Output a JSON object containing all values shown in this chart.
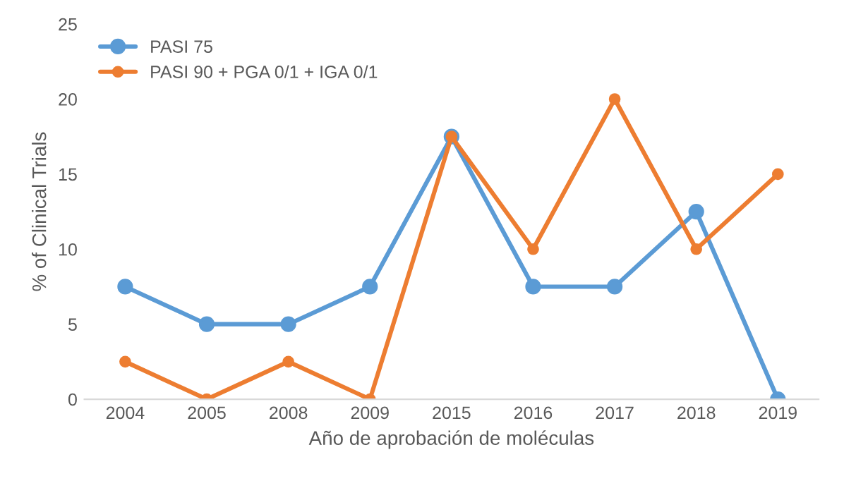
{
  "chart_data": {
    "type": "line",
    "xlabel": "Año de aprobación de moléculas",
    "ylabel": "% of Clinical Trials",
    "categories": [
      "2004",
      "2005",
      "2008",
      "2009",
      "2015",
      "2016",
      "2017",
      "2018",
      "2019"
    ],
    "series": [
      {
        "name": "PASI 75",
        "color": "#5b9bd5",
        "values": [
          7.5,
          5,
          5,
          7.5,
          17.5,
          7.5,
          7.5,
          12.5,
          0
        ]
      },
      {
        "name": "PASI 90 + PGA 0/1 + IGA 0/1",
        "color": "#ed7d31",
        "values": [
          2.5,
          0,
          2.5,
          0,
          17.5,
          10,
          20,
          10,
          15
        ]
      }
    ],
    "ylim": [
      0,
      25
    ],
    "yticks": [
      0,
      5,
      10,
      15,
      20,
      25
    ],
    "grid": false,
    "legend": "top left",
    "marker": "circle",
    "line_style": "solid"
  }
}
